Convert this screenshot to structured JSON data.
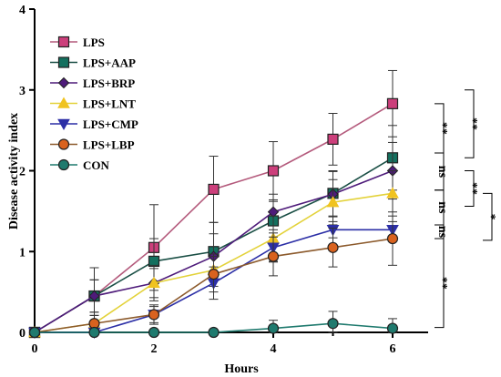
{
  "chart_data": {
    "type": "line",
    "title": "",
    "xlabel": "Hours",
    "ylabel": "Disease activity index",
    "x": [
      0,
      1,
      2,
      3,
      4,
      5,
      6
    ],
    "xlim": [
      0,
      6.6
    ],
    "ylim": [
      0,
      4
    ],
    "xticks": [
      0,
      2,
      4,
      6
    ],
    "yticks": [
      0,
      1,
      2,
      3,
      4
    ],
    "grid": false,
    "legend_position": "top-left",
    "series": [
      {
        "name": "LPS",
        "marker": "square",
        "color": "#cc3f7b",
        "line": "#b45a7c",
        "values": [
          0,
          0.45,
          1.05,
          1.77,
          2.0,
          2.39,
          2.83
        ],
        "errors": [
          0,
          0.35,
          0.53,
          0.41,
          0.36,
          0.32,
          0.41
        ]
      },
      {
        "name": "LPS+AAP",
        "marker": "square",
        "color": "#14705f",
        "line": "#1a4f45",
        "values": [
          0,
          0.45,
          0.88,
          1.0,
          1.38,
          1.72,
          2.16
        ],
        "errors": [
          0,
          0.2,
          0.28,
          0.36,
          0.24,
          0.28,
          0.4
        ]
      },
      {
        "name": "LPS+BRP",
        "marker": "diamond",
        "color": "#4e1b7a",
        "line": "#4e1b7a",
        "values": [
          0,
          0.45,
          0.61,
          0.94,
          1.49,
          1.71,
          2.0
        ],
        "errors": [
          0,
          0.2,
          0.22,
          0.28,
          0.22,
          0.28,
          0.35
        ]
      },
      {
        "name": "LPS+LNT",
        "marker": "triangle-up",
        "color": "#f0c320",
        "line": "#e3d23a",
        "values": [
          0,
          0.11,
          0.61,
          0.77,
          1.16,
          1.61,
          1.72
        ],
        "errors": [
          0,
          0.1,
          0.18,
          0.2,
          0.28,
          0.28,
          0.28
        ]
      },
      {
        "name": "LPS+CMP",
        "marker": "triangle-down",
        "color": "#2c2fa6",
        "line": "#2c2fa6",
        "values": [
          0,
          0,
          0.22,
          0.61,
          1.05,
          1.27,
          1.27
        ],
        "errors": [
          0,
          0,
          0.1,
          0.2,
          0.18,
          0.1,
          0.1
        ]
      },
      {
        "name": "LPS+LBP",
        "marker": "circle",
        "color": "#d9621e",
        "line": "#8c5a2c",
        "values": [
          0,
          0.11,
          0.22,
          0.72,
          0.94,
          1.05,
          1.16
        ],
        "errors": [
          0,
          0.1,
          0.12,
          0.22,
          0.24,
          0.24,
          0.33
        ]
      },
      {
        "name": "CON",
        "marker": "circle",
        "color": "#1f7a6e",
        "line": "#1f7a6e",
        "values": [
          0,
          0,
          0,
          0,
          0.05,
          0.11,
          0.05
        ],
        "errors": [
          0,
          0,
          0,
          0,
          0.1,
          0.15,
          0.12
        ]
      }
    ],
    "significance": [
      {
        "label": "**",
        "y1": 2.83,
        "y2": 2.22,
        "level": 1
      },
      {
        "label": "**",
        "y1": 2.16,
        "y2": 3.0,
        "level": 2
      },
      {
        "label": "ns",
        "y1": 2.22,
        "y2": 1.76,
        "level": 1
      },
      {
        "label": "**",
        "y1": 2.0,
        "y2": 1.56,
        "level": 2
      },
      {
        "label": "ns",
        "y1": 1.76,
        "y2": 1.33,
        "level": 1
      },
      {
        "label": "*",
        "y1": 1.72,
        "y2": 1.14,
        "level": 3
      },
      {
        "label": "ns",
        "y1": 1.33,
        "y2": 1.16,
        "level": 1
      },
      {
        "label": "**",
        "y1": 1.16,
        "y2": 0.06,
        "level": 1
      }
    ]
  }
}
